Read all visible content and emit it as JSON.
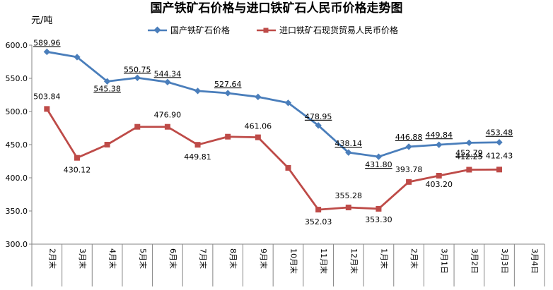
{
  "chart_data": {
    "type": "line",
    "title": "国产铁矿石价格与进口铁矿石人民币价格走势图",
    "ylabel": "元/吨",
    "xlabel": "",
    "ylim": [
      300,
      600
    ],
    "yticks": [
      "300.0",
      "350.0",
      "400.0",
      "450.0",
      "500.0",
      "550.0",
      "600.0"
    ],
    "grid": false,
    "legend_position": "top",
    "categories": [
      "2月末",
      "3月末",
      "4月末",
      "5月末",
      "6月末",
      "7月末",
      "8月末",
      "9月末",
      "10月末",
      "11月末",
      "12月末",
      "1月末",
      "2月末",
      "3月1日",
      "3月2日",
      "3月3日",
      "3月4日"
    ],
    "series": [
      {
        "name": "国产铁矿石价格",
        "color": "#4a7ebb",
        "marker": "diamond",
        "values": [
          589.96,
          582,
          545.38,
          550.75,
          544.34,
          531,
          527.64,
          522,
          513,
          478.95,
          438.14,
          431.8,
          446.88,
          449.84,
          452.79,
          453.48,
          null
        ],
        "labels": [
          "589.96",
          null,
          "545.38",
          "550.75",
          "544.34",
          null,
          "527.64",
          null,
          null,
          "478.95",
          "438.14",
          "431.80",
          "446.88",
          "449.84",
          "452.79",
          "453.48",
          null
        ]
      },
      {
        "name": "进口铁矿石现货贸易人民币价格",
        "color": "#be4b48",
        "marker": "square",
        "values": [
          503.84,
          430.12,
          450,
          476.9,
          476.9,
          449.81,
          462,
          461.06,
          415,
          352.03,
          355.28,
          353.3,
          393.78,
          403.2,
          412.25,
          412.43,
          null
        ],
        "labels": [
          "503.84",
          "430.12",
          null,
          null,
          "476.90",
          "449.81",
          null,
          "461.06",
          null,
          "352.03",
          "355.28",
          "353.30",
          "393.78",
          "403.20",
          "412.25",
          "412.43",
          null
        ]
      }
    ]
  }
}
